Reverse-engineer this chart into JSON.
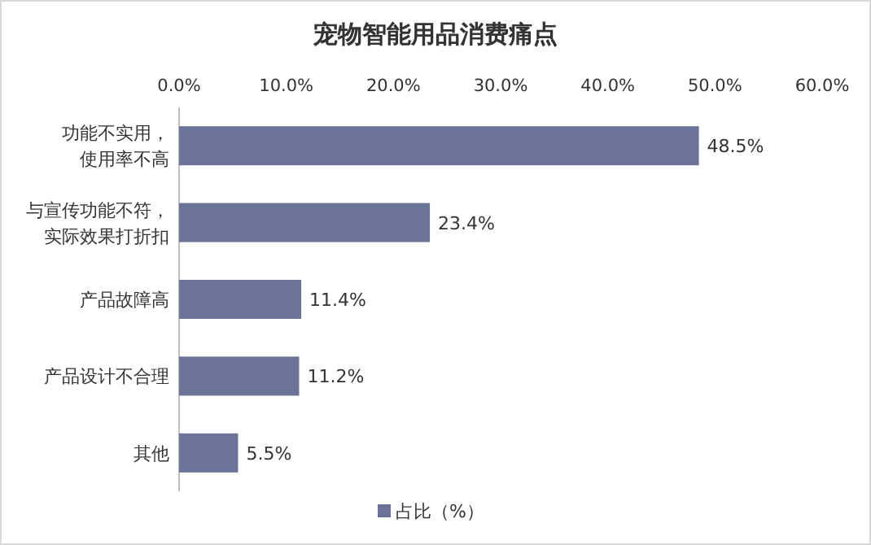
{
  "chart_data": {
    "type": "bar",
    "orientation": "horizontal",
    "title": "宠物智能用品消费痛点",
    "categories": [
      "功能不实用，使用率不高",
      "与宣传功能不符，实际效果打折扣",
      "产品故障高",
      "产品设计不合理",
      "其他"
    ],
    "series": [
      {
        "name": "占比（%）",
        "color": "#6b7399",
        "values": [
          48.5,
          23.4,
          11.4,
          11.2,
          5.5
        ],
        "value_labels": [
          "48.5%",
          "23.4%",
          "11.4%",
          "11.2%",
          "5.5%"
        ]
      }
    ],
    "xlim": [
      0,
      60
    ],
    "xticks": [
      {
        "value": 0,
        "label": "0.0%"
      },
      {
        "value": 10,
        "label": "10.0%"
      },
      {
        "value": 20,
        "label": "20.0%"
      },
      {
        "value": 30,
        "label": "30.0%"
      },
      {
        "value": 40,
        "label": "40.0%"
      },
      {
        "value": 50,
        "label": "50.0%"
      },
      {
        "value": 60,
        "label": "60.0%"
      }
    ],
    "legend": "bottom",
    "grid": false
  }
}
